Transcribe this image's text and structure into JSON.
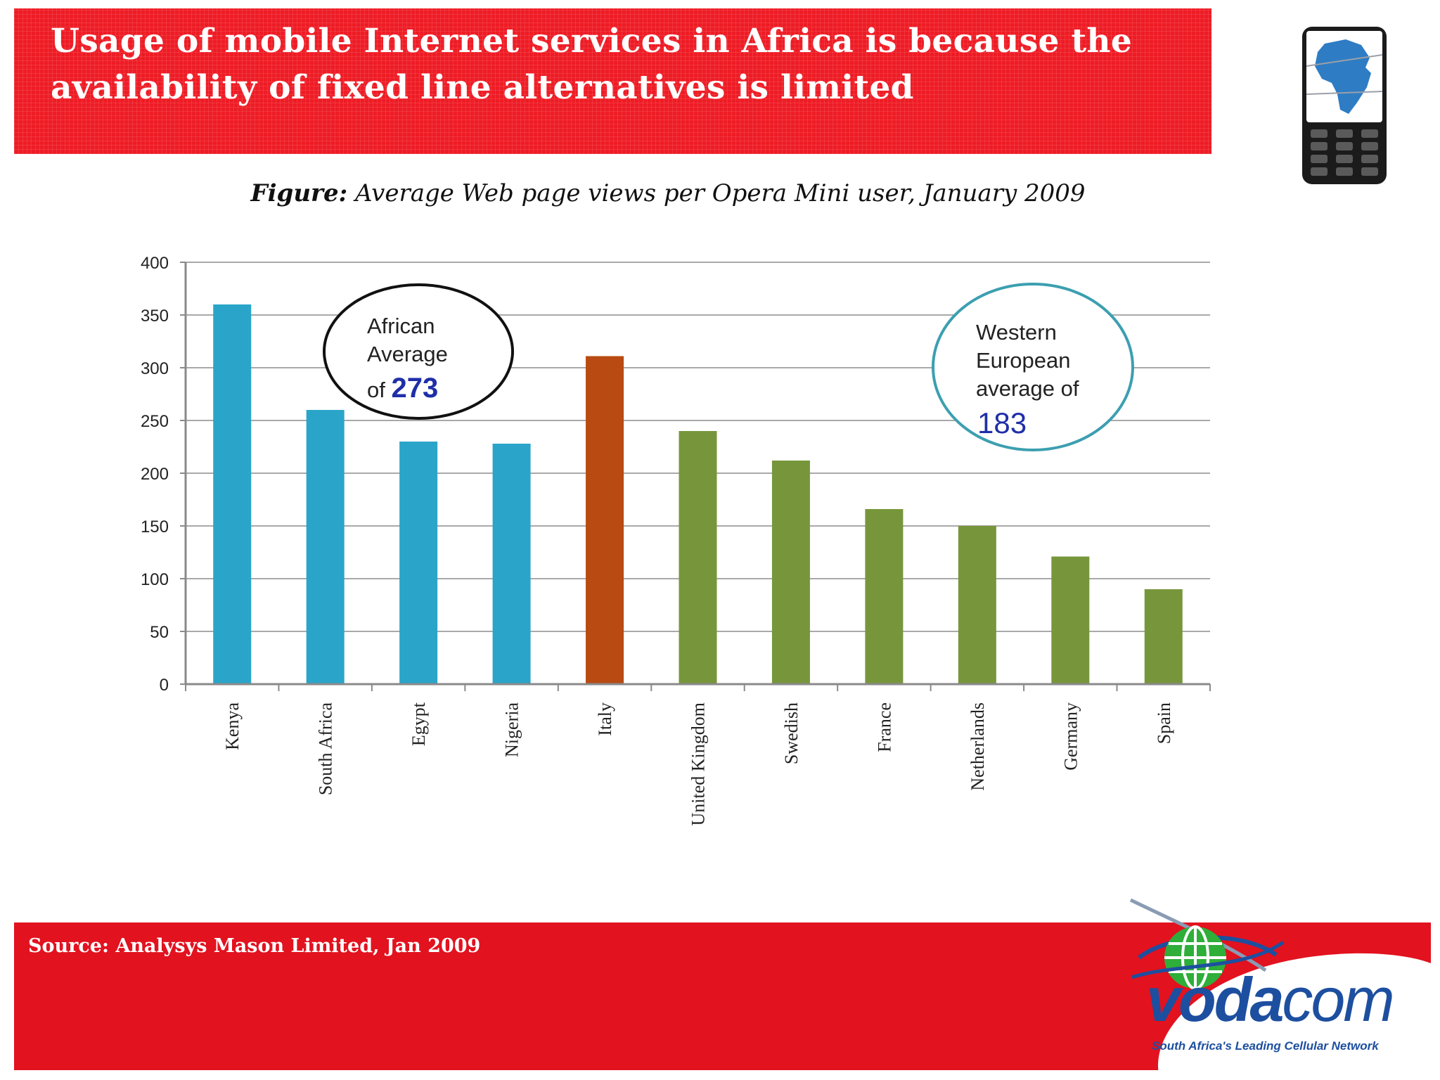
{
  "header": {
    "title_line1": "Usage of mobile Internet services in Africa is because the",
    "title_line2": "availability of fixed line alternatives is limited"
  },
  "figure_caption": {
    "label": "Figure:",
    "text": "Average Web page views per Opera Mini user, January 2009"
  },
  "annotations": {
    "african": {
      "line1": "African",
      "line2": "Average",
      "prefix": "of ",
      "value": "273",
      "color": "#1f2fa8"
    },
    "western": {
      "line1": "Western",
      "line2": "European",
      "line3": "average of",
      "value": "183",
      "color": "#1f2fa8"
    }
  },
  "footer": {
    "source": "Source: Analysys Mason Limited, Jan 2009"
  },
  "logo": {
    "brand_bold": "voda",
    "brand_rest": "com",
    "tagline": "South Africa's Leading Cellular Network"
  },
  "icons": [
    "mobile-phone-africa-map-icon",
    "globe-swoosh-icon"
  ],
  "colors": {
    "header_red": "#ee1c25",
    "footer_red": "#e2121f",
    "africa_blue": "#2aa5c9",
    "italy_orange": "#b84a12",
    "europe_green": "#77963b",
    "brand_blue": "#1d4fa0"
  },
  "chart_data": {
    "type": "bar",
    "categories": [
      "Kenya",
      "South Africa",
      "Egypt",
      "Nigeria",
      "Italy",
      "United Kingdom",
      "Swedish",
      "France",
      "Netherlands",
      "Germany",
      "Spain"
    ],
    "values": [
      360,
      260,
      230,
      228,
      311,
      240,
      212,
      166,
      150,
      121,
      90
    ],
    "bar_colors": [
      "#2aa5c9",
      "#2aa5c9",
      "#2aa5c9",
      "#2aa5c9",
      "#b84a12",
      "#77963b",
      "#77963b",
      "#77963b",
      "#77963b",
      "#77963b",
      "#77963b"
    ],
    "yticks": [
      0,
      50,
      100,
      150,
      200,
      250,
      300,
      350,
      400
    ],
    "ylim": [
      0,
      400
    ],
    "grid": true
  }
}
